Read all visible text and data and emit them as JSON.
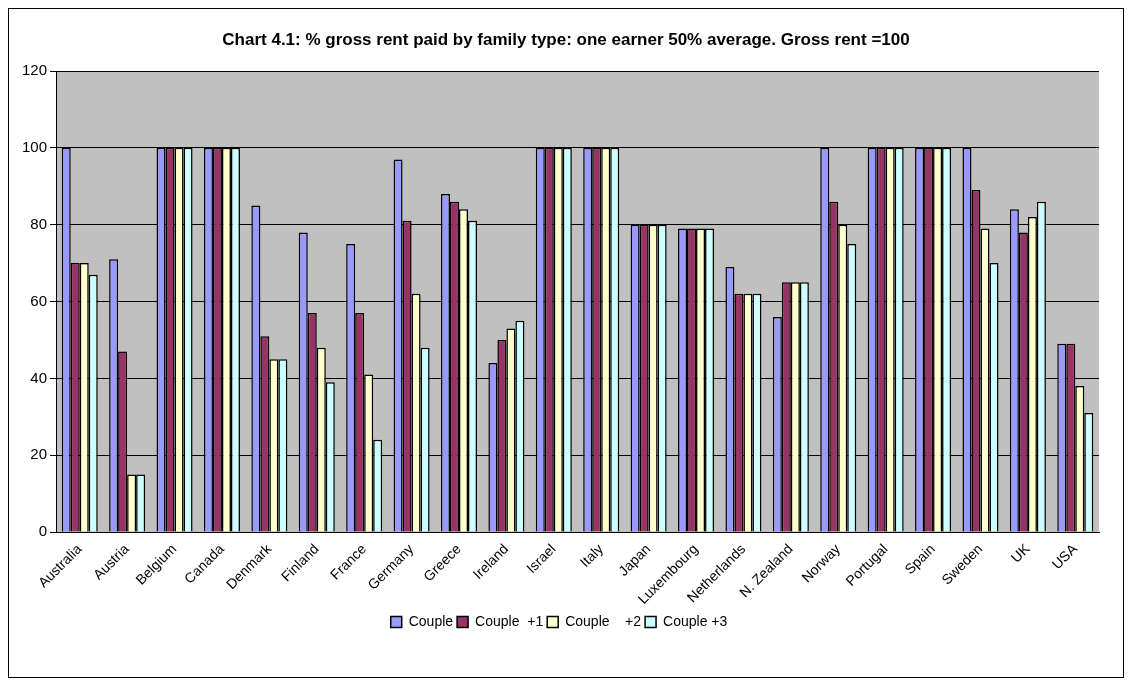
{
  "chart_data": {
    "type": "bar",
    "title": "Chart 4.1: % gross rent paid by family type: one earner 50% average. Gross rent =100",
    "categories": [
      "Australia",
      "Austria",
      "Belgium",
      "Canada",
      "Denmark",
      "Finland",
      "France",
      "Germany",
      "Greece",
      "Ireland",
      "Israel",
      "Italy",
      "Japan",
      "Luxembourg",
      "Netherlands",
      "N. Zealand",
      "Norway",
      "Portugal",
      "Spain",
      "Sweden",
      "UK",
      "USA"
    ],
    "series": [
      {
        "name": "Couple",
        "color": "#9999ff",
        "values": [
          100,
          71,
          100,
          100,
          85,
          78,
          75,
          97,
          88,
          44,
          100,
          100,
          80,
          79,
          69,
          56,
          100,
          100,
          100,
          100,
          84,
          49
        ]
      },
      {
        "name": "Couple  +1",
        "color": "#993366",
        "values": [
          70,
          47,
          100,
          100,
          51,
          57,
          57,
          81,
          86,
          50,
          100,
          100,
          80,
          79,
          62,
          65,
          86,
          100,
          100,
          89,
          78,
          49
        ]
      },
      {
        "name": "Couple    +2",
        "color": "#ffffcc",
        "values": [
          70,
          15,
          100,
          100,
          45,
          48,
          41,
          62,
          84,
          53,
          100,
          100,
          80,
          79,
          62,
          65,
          80,
          100,
          100,
          79,
          82,
          38
        ]
      },
      {
        "name": "Couple +3",
        "color": "#ccffff",
        "values": [
          67,
          15,
          100,
          100,
          45,
          39,
          24,
          48,
          81,
          55,
          100,
          100,
          80,
          79,
          62,
          65,
          75,
          100,
          100,
          70,
          86,
          31
        ]
      }
    ],
    "ylim": [
      0,
      120
    ],
    "yticks": [
      0,
      20,
      40,
      60,
      80,
      100,
      120
    ],
    "grid": "y",
    "legend": "bottom"
  }
}
